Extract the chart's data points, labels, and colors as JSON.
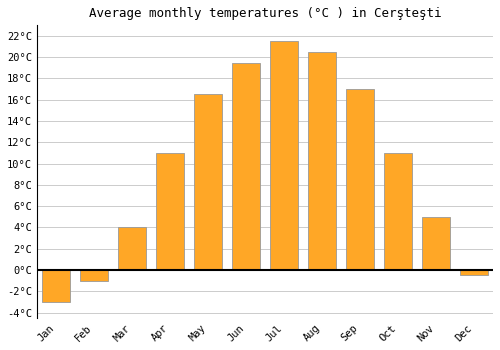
{
  "title": "Average monthly temperatures (°C ) in Cerşteşti",
  "months": [
    "Jan",
    "Feb",
    "Mar",
    "Apr",
    "May",
    "Jun",
    "Jul",
    "Aug",
    "Sep",
    "Oct",
    "Nov",
    "Dec"
  ],
  "values": [
    -3.0,
    -1.0,
    4.0,
    11.0,
    16.5,
    19.5,
    21.5,
    20.5,
    17.0,
    11.0,
    5.0,
    -0.5
  ],
  "bar_color": "#FFA726",
  "bar_edge_color": "#999999",
  "ylim": [
    -4.5,
    23
  ],
  "yticks": [
    -4,
    -2,
    0,
    2,
    4,
    6,
    8,
    10,
    12,
    14,
    16,
    18,
    20,
    22
  ],
  "ytick_labels": [
    "-4°C",
    "-2°C",
    "0°C",
    "2°C",
    "4°C",
    "6°C",
    "8°C",
    "10°C",
    "12°C",
    "14°C",
    "16°C",
    "18°C",
    "20°C",
    "22°C"
  ],
  "background_color": "#ffffff",
  "grid_color": "#cccccc",
  "zero_line_color": "#000000",
  "title_fontsize": 9,
  "tick_fontsize": 7.5,
  "figsize": [
    5.0,
    3.5
  ],
  "dpi": 100
}
